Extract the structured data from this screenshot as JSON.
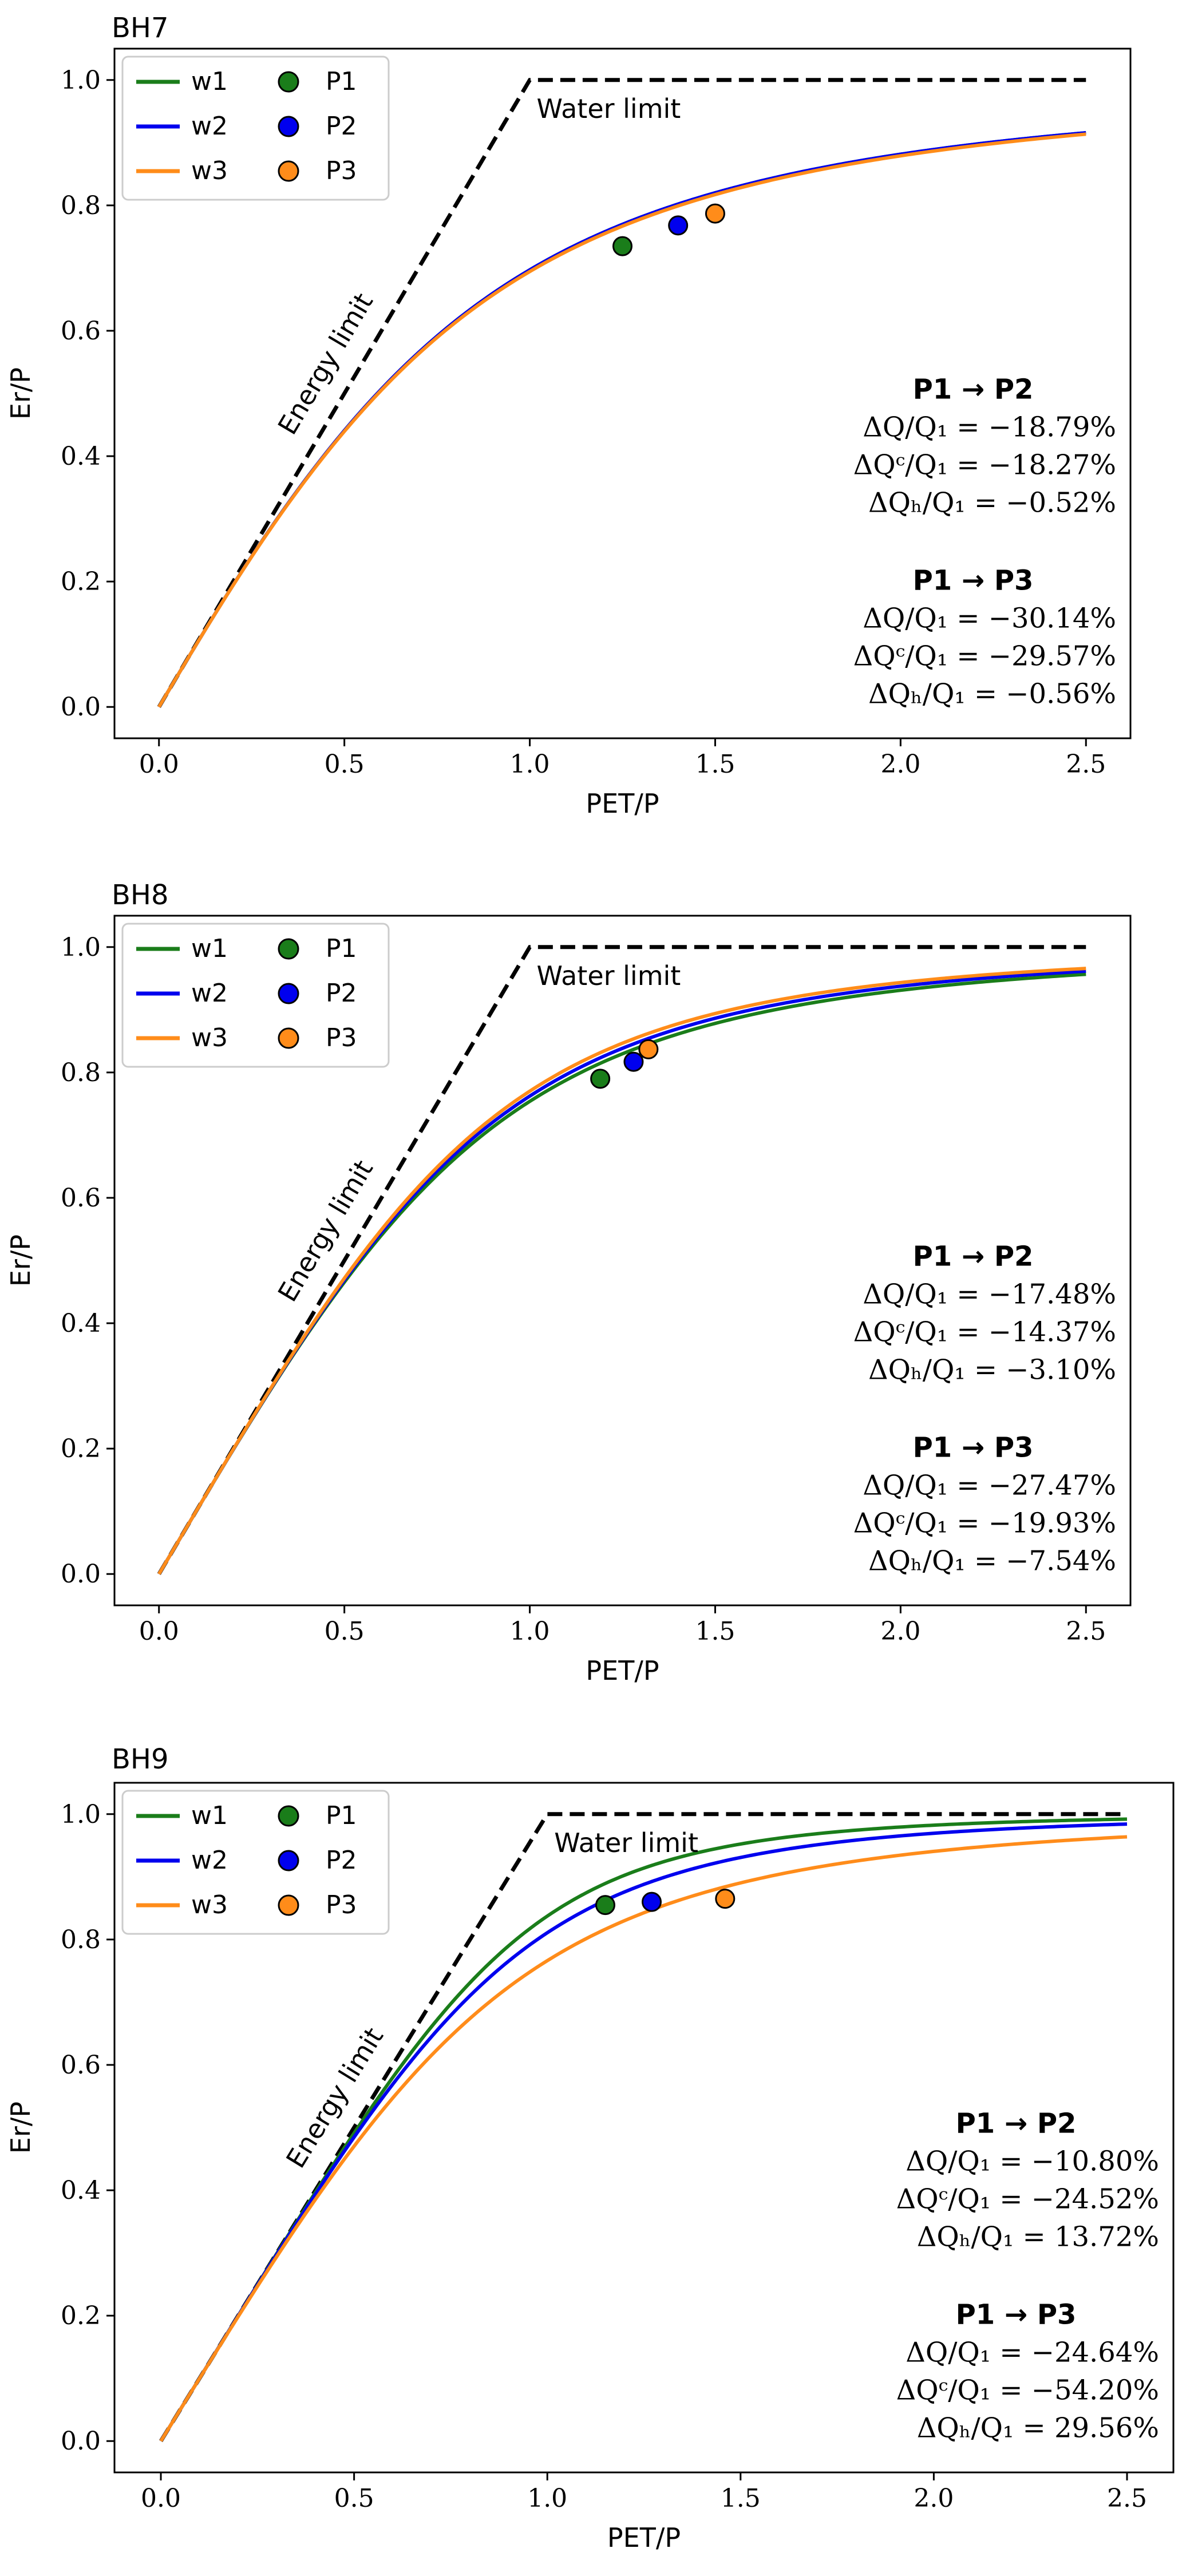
{
  "chart_data": [
    {
      "type": "line",
      "title": "BH7",
      "xlabel": "PET/P",
      "ylabel": "Er/P",
      "xlim": [
        -0.12,
        2.62
      ],
      "ylim": [
        -0.05,
        1.05
      ],
      "xticks": [
        "0.0",
        "0.5",
        "1.0",
        "1.5",
        "2.0",
        "2.5"
      ],
      "yticks": [
        "0.0",
        "0.2",
        "0.4",
        "0.6",
        "0.8",
        "1.0"
      ],
      "grid": false,
      "legend_position": "top-left",
      "limit_labels": {
        "energy": "Energy limit",
        "water": "Water limit"
      },
      "series": [
        {
          "name": "w1",
          "w": 2.62,
          "color": "#1a7d1a"
        },
        {
          "name": "w2",
          "w": 2.62,
          "color": "#0000ee"
        },
        {
          "name": "w3",
          "w": 2.6,
          "color": "#ff8c1a"
        }
      ],
      "points": [
        {
          "name": "P1",
          "x": 1.25,
          "y": 0.735,
          "color": "#1a7d1a"
        },
        {
          "name": "P2",
          "x": 1.4,
          "y": 0.768,
          "color": "#0000ee"
        },
        {
          "name": "P3",
          "x": 1.5,
          "y": 0.787,
          "color": "#ff8c1a"
        }
      ],
      "stats": [
        {
          "title": "P1 → P2",
          "lines": [
            "ΔQ/Q₁ = −18.79%",
            "ΔQᶜ/Q₁ = −18.27%",
            "ΔQₕ/Q₁ = −0.52%"
          ]
        },
        {
          "title": "P1 → P3",
          "lines": [
            "ΔQ/Q₁ = −30.14%",
            "ΔQᶜ/Q₁ = −29.57%",
            "ΔQₕ/Q₁ = −0.56%"
          ]
        }
      ]
    },
    {
      "type": "line",
      "title": "BH8",
      "xlabel": "PET/P",
      "ylabel": "Er/P",
      "xlim": [
        -0.12,
        2.62
      ],
      "ylim": [
        -0.05,
        1.05
      ],
      "xticks": [
        "0.0",
        "0.5",
        "1.0",
        "1.5",
        "2.0",
        "2.5"
      ],
      "yticks": [
        "0.0",
        "0.2",
        "0.4",
        "0.6",
        "0.8",
        "1.0"
      ],
      "grid": false,
      "legend_position": "top-left",
      "limit_labels": {
        "energy": "Energy limit",
        "water": "Water limit"
      },
      "series": [
        {
          "name": "w1",
          "w": 3.15,
          "color": "#1a7d1a"
        },
        {
          "name": "w2",
          "w": 3.25,
          "color": "#0000ee"
        },
        {
          "name": "w3",
          "w": 3.35,
          "color": "#ff8c1a"
        }
      ],
      "points": [
        {
          "name": "P1",
          "x": 1.19,
          "y": 0.79,
          "color": "#1a7d1a"
        },
        {
          "name": "P2",
          "x": 1.28,
          "y": 0.817,
          "color": "#0000ee"
        },
        {
          "name": "P3",
          "x": 1.32,
          "y": 0.837,
          "color": "#ff8c1a"
        }
      ],
      "stats": [
        {
          "title": "P1 → P2",
          "lines": [
            "ΔQ/Q₁ = −17.48%",
            "ΔQᶜ/Q₁ = −14.37%",
            "ΔQₕ/Q₁ = −3.10%"
          ]
        },
        {
          "title": "P1 → P3",
          "lines": [
            "ΔQ/Q₁ = −27.47%",
            "ΔQᶜ/Q₁ = −19.93%",
            "ΔQₕ/Q₁ = −7.54%"
          ]
        }
      ]
    },
    {
      "type": "line",
      "title": "BH9",
      "xlabel": "PET/P",
      "ylabel": "Er/P",
      "xlim": [
        -0.12,
        2.62
      ],
      "ylim": [
        -0.05,
        1.05
      ],
      "xticks": [
        "0.0",
        "0.5",
        "1.0",
        "1.5",
        "2.0",
        "2.5"
      ],
      "yticks": [
        "0.0",
        "0.2",
        "0.4",
        "0.6",
        "0.8",
        "1.0"
      ],
      "grid": false,
      "legend_position": "top-left",
      "limit_labels": {
        "energy": "Energy limit",
        "water": "Water limit"
      },
      "series": [
        {
          "name": "w1",
          "w": 4.6,
          "color": "#1a7d1a"
        },
        {
          "name": "w2",
          "w": 4.0,
          "color": "#0000ee"
        },
        {
          "name": "w3",
          "w": 3.3,
          "color": "#ff8c1a"
        }
      ],
      "points": [
        {
          "name": "P1",
          "x": 1.15,
          "y": 0.855,
          "color": "#1a7d1a"
        },
        {
          "name": "P2",
          "x": 1.27,
          "y": 0.86,
          "color": "#0000ee"
        },
        {
          "name": "P3",
          "x": 1.46,
          "y": 0.865,
          "color": "#ff8c1a"
        }
      ],
      "stats": [
        {
          "title": "P1 → P2",
          "lines": [
            "ΔQ/Q₁ = −10.80%",
            "ΔQᶜ/Q₁ = −24.52%",
            "ΔQₕ/Q₁ = 13.72%"
          ]
        },
        {
          "title": "P1 → P3",
          "lines": [
            "ΔQ/Q₁ = −24.64%",
            "ΔQᶜ/Q₁ = −54.20%",
            "ΔQₕ/Q₁ = 29.56%"
          ]
        }
      ]
    }
  ]
}
